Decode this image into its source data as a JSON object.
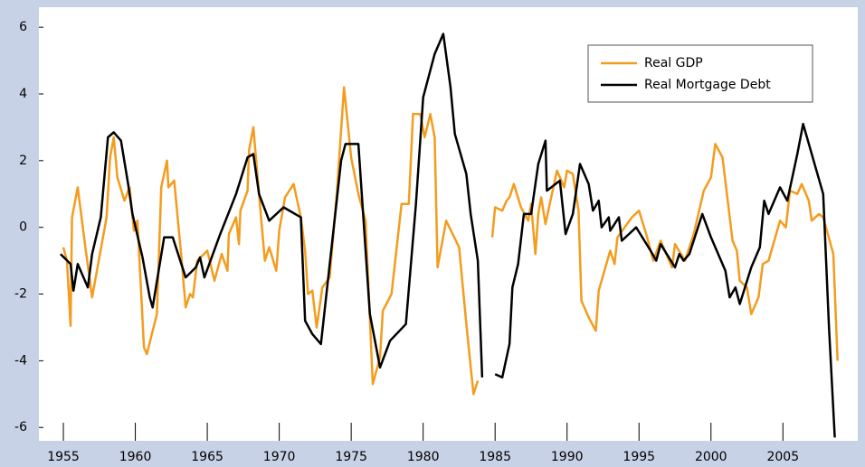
{
  "chart_data": {
    "type": "line",
    "xlim": [
      1953.3,
      2010.2
    ],
    "ylim": [
      -6.4,
      6.6
    ],
    "xticks": [
      1955,
      1960,
      1965,
      1970,
      1975,
      1980,
      1985,
      1990,
      1995,
      2000,
      2005
    ],
    "yticks": [
      -6,
      -4,
      -2,
      0,
      2,
      4,
      6
    ],
    "legend": "top-right",
    "series": [
      {
        "name": "Real GDP",
        "color": "#f39c1e",
        "x": [
          1955.0,
          1955.25,
          1955.5,
          1955.6,
          1956.0,
          1956.5,
          1957.0,
          1957.5,
          1958.0,
          1958.25,
          1958.5,
          1958.75,
          1959.25,
          1959.6,
          1959.9,
          1960.15,
          1960.6,
          1960.8,
          1961.5,
          1961.8,
          1962.2,
          1962.3,
          1962.7,
          1963.2,
          1963.5,
          1963.8,
          1964.0,
          1964.3,
          1965.0,
          1965.5,
          1966.0,
          1966.4,
          1966.5,
          1967.0,
          1967.2,
          1967.3,
          1967.8,
          1967.9,
          1968.2,
          1968.6,
          1969.0,
          1969.3,
          1969.8,
          1970.0,
          1970.4,
          1971.0,
          1971.5,
          1971.8,
          1972.0,
          1972.3,
          1972.6,
          1973.0,
          1973.5,
          1974.0,
          1974.5,
          1975.0,
          1975.5,
          1976.0,
          1976.5,
          1977.0,
          1977.2,
          1977.8,
          1978.5,
          1979.0,
          1979.3,
          1979.8,
          1980.1,
          1980.5,
          1980.8,
          1981.0,
          1981.6,
          1982.5,
          1983.0,
          1983.5,
          1983.8,
          1984.5,
          1984.8,
          1985.0,
          1985.5,
          1985.8,
          1986.0,
          1986.3,
          1986.8,
          1987.3,
          1987.5,
          1987.8,
          1988.0,
          1988.2,
          1988.5,
          1988.8,
          1989.3,
          1989.8,
          1990.0,
          1990.4,
          1990.8,
          1991.0,
          1991.5,
          1992.0,
          1992.2,
          1993.0,
          1993.3,
          1993.5,
          1994.5,
          1995.0,
          1995.5,
          1996.0,
          1996.5,
          1997.3,
          1997.5,
          1998.2,
          1998.8,
          1999.5,
          2000.0,
          2000.3,
          2000.8,
          2001.5,
          2001.8,
          2002.0,
          2002.5,
          2002.8,
          2003.3,
          2003.6,
          2004.0,
          2004.8,
          2005.2,
          2005.5,
          2006.0,
          2006.3,
          2006.8,
          2007.0,
          2007.5,
          2007.8,
          2008.5,
          2008.8
        ],
        "values": [
          -0.6,
          -1.0,
          -2.95,
          0.3,
          1.2,
          -0.5,
          -2.1,
          -0.9,
          0.3,
          2.1,
          2.7,
          1.5,
          0.8,
          1.2,
          -0.1,
          0.2,
          -3.6,
          -3.8,
          -2.6,
          1.2,
          2.0,
          1.2,
          1.4,
          -0.9,
          -2.4,
          -2.0,
          -2.1,
          -1.0,
          -0.7,
          -1.6,
          -0.8,
          -1.3,
          -0.2,
          0.3,
          -0.5,
          0.5,
          1.1,
          2.3,
          3.0,
          1.0,
          -1.0,
          -0.6,
          -1.3,
          -0.1,
          0.9,
          1.3,
          0.3,
          -0.7,
          -2.0,
          -1.9,
          -3.0,
          -1.8,
          -1.5,
          1.0,
          4.2,
          2.1,
          1.0,
          0.2,
          -4.7,
          -3.9,
          -2.5,
          -2.0,
          0.7,
          0.7,
          3.4,
          3.4,
          2.7,
          3.4,
          2.7,
          -1.2,
          0.2,
          -0.6,
          -2.9,
          -5.0,
          -4.6,
          null,
          -0.3,
          0.6,
          0.5,
          0.8,
          0.9,
          1.3,
          0.6,
          0.2,
          0.7,
          -0.8,
          0.4,
          0.9,
          0.1,
          0.7,
          1.7,
          1.2,
          1.7,
          1.6,
          0.5,
          -2.2,
          -2.7,
          -3.1,
          -1.9,
          -0.7,
          -1.1,
          -0.3,
          0.3,
          0.5,
          -0.2,
          -1.0,
          -0.4,
          -1.2,
          -0.5,
          -1.0,
          -0.2,
          1.1,
          1.5,
          2.5,
          2.1,
          -0.4,
          -0.7,
          -1.6,
          -1.8,
          -2.6,
          -2.1,
          -1.1,
          -1.0,
          0.2,
          0.0,
          1.1,
          1.0,
          1.3,
          0.8,
          0.2,
          0.4,
          0.3,
          -0.8,
          -4.0
        ]
      },
      {
        "name": "Real Mortgage Debt",
        "color": "#000000",
        "x": [
          1954.8,
          1955.5,
          1955.7,
          1956.0,
          1956.7,
          1957.0,
          1957.6,
          1958.1,
          1958.5,
          1959.0,
          1959.5,
          1959.8,
          1960.5,
          1961.0,
          1961.2,
          1962.0,
          1962.6,
          1963.5,
          1964.2,
          1964.5,
          1964.8,
          1965.9,
          1967.0,
          1967.8,
          1968.2,
          1968.6,
          1969.3,
          1970.3,
          1971.5,
          1971.8,
          1972.3,
          1972.9,
          1974.3,
          1974.6,
          1975.5,
          1976.3,
          1977.0,
          1977.7,
          1978.8,
          1979.5,
          1980.0,
          1980.8,
          1981.4,
          1981.9,
          1982.2,
          1983.0,
          1983.3,
          1983.8,
          1984.1,
          1984.5,
          1985.0,
          1985.5,
          1986.0,
          1986.2,
          1986.6,
          1987.0,
          1987.5,
          1988.0,
          1988.5,
          1988.6,
          1989.5,
          1989.9,
          1990.4,
          1990.6,
          1990.9,
          1991.5,
          1991.8,
          1992.2,
          1992.4,
          1992.9,
          1993.0,
          1993.6,
          1993.8,
          1994.8,
          1995.8,
          1996.2,
          1996.5,
          1997.5,
          1997.8,
          1998.1,
          1998.5,
          1999.4,
          2000.0,
          2001.0,
          2001.3,
          2001.7,
          2002.0,
          2002.8,
          2003.4,
          2003.7,
          2004.0,
          2004.8,
          2005.3,
          2006.0,
          2006.4,
          2007.8,
          2008.2,
          2008.6
        ],
        "values": [
          -0.8,
          -1.1,
          -1.9,
          -1.1,
          -1.8,
          -0.8,
          0.3,
          2.7,
          2.85,
          2.6,
          1.3,
          0.4,
          -0.9,
          -2.1,
          -2.4,
          -0.3,
          -0.3,
          -1.5,
          -1.2,
          -0.9,
          -1.5,
          -0.2,
          1.0,
          2.1,
          2.2,
          1.0,
          0.2,
          0.6,
          0.3,
          -2.8,
          -3.2,
          -3.5,
          2.0,
          2.5,
          2.5,
          -2.6,
          -4.2,
          -3.4,
          -2.9,
          0.7,
          3.9,
          5.2,
          5.8,
          4.2,
          2.8,
          1.6,
          0.4,
          -1.0,
          -4.5,
          null,
          -4.4,
          -4.5,
          -3.5,
          -1.8,
          -1.1,
          0.4,
          0.4,
          1.9,
          2.6,
          1.1,
          1.4,
          -0.2,
          0.4,
          1.0,
          1.9,
          1.3,
          0.5,
          0.8,
          0.0,
          0.3,
          -0.1,
          0.3,
          -0.4,
          0.0,
          -0.7,
          -1.0,
          -0.5,
          -1.2,
          -0.8,
          -1.0,
          -0.8,
          0.4,
          -0.3,
          -1.3,
          -2.1,
          -1.8,
          -2.3,
          -1.2,
          -0.6,
          0.8,
          0.4,
          1.2,
          0.8,
          2.2,
          3.1,
          1.0,
          -3.0,
          -6.3
        ]
      }
    ]
  }
}
